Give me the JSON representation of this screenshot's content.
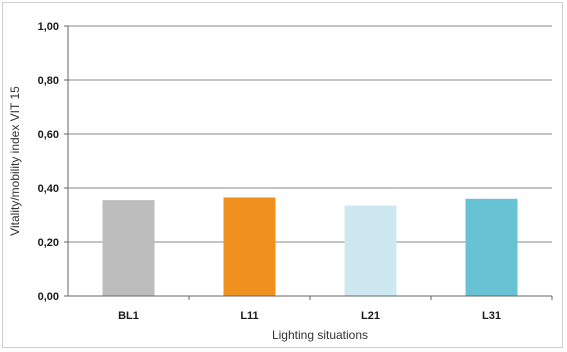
{
  "chart_data": {
    "type": "bar",
    "categories": [
      "BL1",
      "L11",
      "L21",
      "L31"
    ],
    "values": [
      0.355,
      0.365,
      0.335,
      0.36
    ],
    "colors": [
      "#bdbdbd",
      "#f0901e",
      "#cde8f0",
      "#67c3d3"
    ],
    "xlabel": "Lighting situations",
    "ylabel": "Vitality/mobility index VIT 15",
    "ylim": [
      0,
      1.0
    ],
    "yticks": [
      0.0,
      0.2,
      0.4,
      0.6,
      0.8,
      1.0
    ],
    "ytick_labels": [
      "0,00",
      "0,20",
      "0,40",
      "0,60",
      "0,80",
      "1,00"
    ],
    "grid": true,
    "legend": "none"
  }
}
